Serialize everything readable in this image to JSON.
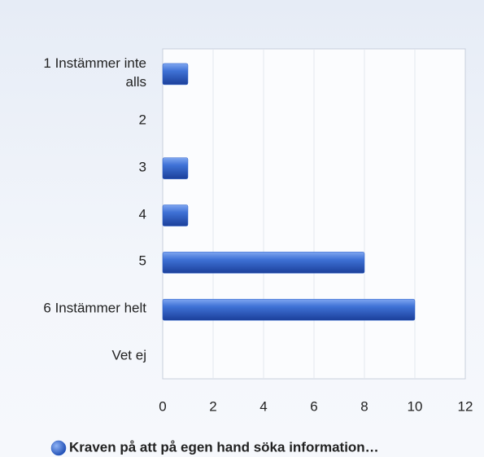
{
  "chart_data": {
    "type": "bar",
    "orientation": "horizontal",
    "categories": [
      "1 Instämmer inte alls",
      "2",
      "3",
      "4",
      "5",
      "6 Instämmer helt",
      "Vet ej"
    ],
    "series": [
      {
        "name": "Kraven på att på egen hand söka information…",
        "color": "#2a5fc9",
        "values": [
          1,
          0,
          1,
          1,
          8,
          10,
          0
        ]
      }
    ],
    "xlim": [
      0,
      12
    ],
    "xticks": [
      0,
      2,
      4,
      6,
      8,
      10,
      12
    ],
    "grid": true,
    "legend": "bottom"
  }
}
